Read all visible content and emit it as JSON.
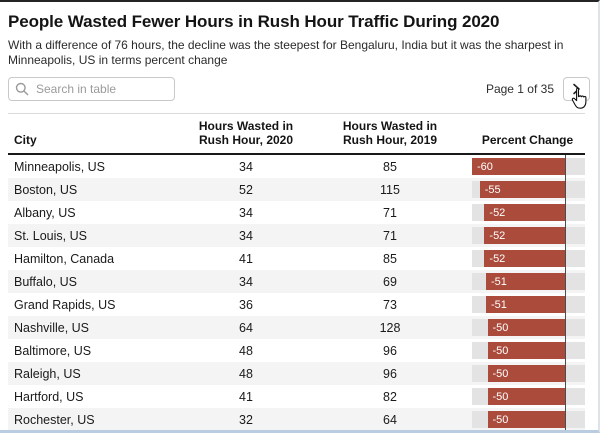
{
  "toolbar": {
    "search_placeholder": "Search in table",
    "search_value": "",
    "pagination_label": "Page 1 of 35"
  },
  "icons": {
    "search_icon": "magnifier",
    "next_icon": "chevron-right",
    "cursor_icon": "hand-pointer"
  },
  "colors": {
    "bar": "#ab4b3c",
    "bar_label": "#ffffff",
    "track": "#e3e3e3",
    "row_stripe": "#f4f4f4",
    "zero_line": "#4d4d4d",
    "header_rule": "#191919"
  },
  "chart_data": {
    "type": "table",
    "title": "People Wasted Fewer Hours in Rush Hour Traffic During 2020",
    "subtitle": "With a difference of 76 hours, the decline was the steepest for Bengaluru, India but it was the sharpest in Minneapolis, US in terms percent change",
    "columns": [
      "City",
      "Hours Wasted in Rush Hour, 2020",
      "Hours Wasted in Rush Hour, 2019",
      "Percent Change"
    ],
    "rows": [
      [
        "Minneapolis, US",
        34,
        85,
        -60
      ],
      [
        "Boston, US",
        52,
        115,
        -55
      ],
      [
        "Albany, US",
        34,
        71,
        -52
      ],
      [
        "St. Louis, US",
        34,
        71,
        -52
      ],
      [
        "Hamilton, Canada",
        41,
        85,
        -52
      ],
      [
        "Buffalo, US",
        34,
        69,
        -51
      ],
      [
        "Grand Rapids, US",
        36,
        73,
        -51
      ],
      [
        "Nashville, US",
        64,
        128,
        -50
      ],
      [
        "Baltimore, US",
        48,
        96,
        -50
      ],
      [
        "Raleigh, US",
        48,
        96,
        -50
      ],
      [
        "Hartford, US",
        41,
        82,
        -50
      ],
      [
        "Rochester, US",
        32,
        64,
        -50
      ]
    ],
    "bar_column": "Percent Change",
    "bar_axis": {
      "min": -60,
      "max": 0
    },
    "bar_color": "#ab4b3c",
    "legend_position": "none",
    "grid": false
  }
}
